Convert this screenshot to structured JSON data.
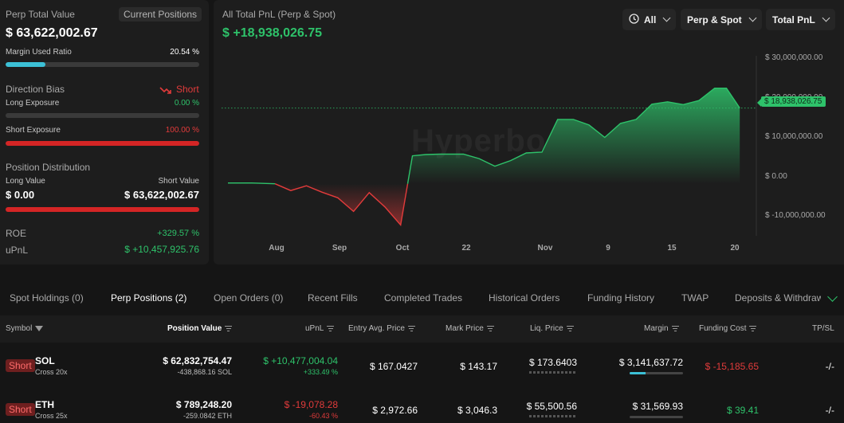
{
  "summary": {
    "perp_total_label": "Perp Total Value",
    "current_positions_button": "Current Positions",
    "perp_total_value": "$ 63,622,002.67",
    "margin_used_label": "Margin Used Ratio",
    "margin_used_value": "20.54 %",
    "margin_used_fraction": 0.2054,
    "direction_bias_label": "Direction Bias",
    "direction_bias_value": "Short",
    "long_exposure_label": "Long Exposure",
    "long_exposure_value": "0.00 %",
    "long_exposure_fraction": 0.0,
    "short_exposure_label": "Short Exposure",
    "short_exposure_value": "100.00 %",
    "short_exposure_fraction": 1.0,
    "position_distribution_label": "Position Distribution",
    "long_value_label": "Long Value",
    "short_value_label": "Short Value",
    "long_value": "$ 0.00",
    "short_value": "$ 63,622,002.67",
    "roe_label": "ROE",
    "roe_value": "+329.57 %",
    "upnl_label": "uPnL",
    "upnl_value": "$ +10,457,925.76"
  },
  "chart": {
    "title": "All Total PnL (Perp & Spot)",
    "total_value": "$ +18,938,026.75",
    "controls": {
      "range": "All",
      "scope": "Perp & Spot",
      "metric": "Total PnL"
    },
    "watermark": "Hyperbo",
    "current_tag": "$ 18,938,026.75",
    "colors": {
      "positive": "#2ec26a",
      "negative": "#e23b3b"
    }
  },
  "chart_data": {
    "type": "area",
    "y_tick_labels": [
      "$ 30,000,000.00",
      "$ 20,000,000.00",
      "$ 10,000,000.00",
      "$ 0.00",
      "$ -10,000,000.00"
    ],
    "y_ticks": [
      30000000,
      20000000,
      10000000,
      0,
      -10000000
    ],
    "ylim": [
      -13000000,
      32000000
    ],
    "x_tick_labels": [
      "Aug",
      "Sep",
      "Oct",
      "22",
      "Nov",
      "9",
      "15",
      "20"
    ],
    "x_ticks": [
      7,
      15,
      23,
      31,
      39,
      47,
      55,
      63
    ],
    "xlim": [
      0,
      66.8
    ],
    "current_value": 18938026.75,
    "x": [
      0,
      3,
      6,
      8,
      10,
      12,
      14,
      16,
      18,
      20,
      22,
      23.5,
      25.2,
      27,
      30,
      32,
      34,
      36,
      38,
      40,
      42,
      44,
      46,
      48,
      50,
      52,
      54,
      56,
      58,
      60,
      62,
      63.5,
      65.2
    ],
    "y": [
      200000,
      200000,
      0,
      -1700000,
      -500000,
      -2100000,
      -3500000,
      -6900000,
      -2200000,
      -5800000,
      -10300000,
      7000000,
      7300000,
      7400000,
      7400000,
      6300000,
      4400000,
      5800000,
      7700000,
      7900000,
      16100000,
      16100000,
      14700000,
      11600000,
      15100000,
      16100000,
      19900000,
      20500000,
      19800000,
      20800000,
      23900000,
      23900000,
      18938026
    ]
  },
  "tabs": [
    {
      "label": "Spot Holdings (0)"
    },
    {
      "label": "Perp Positions (2)"
    },
    {
      "label": "Open Orders (0)"
    },
    {
      "label": "Recent Fills"
    },
    {
      "label": "Completed Trades"
    },
    {
      "label": "Historical Orders"
    },
    {
      "label": "Funding History"
    },
    {
      "label": "TWAP"
    },
    {
      "label": "Deposits & Withdraw"
    }
  ],
  "table": {
    "headers": {
      "symbol": "Symbol",
      "position_value": "Position Value",
      "upnl": "uPnL",
      "entry": "Entry Avg. Price",
      "mark": "Mark Price",
      "liq": "Liq. Price",
      "margin": "Margin",
      "funding": "Funding Cost",
      "tpsl": "TP/SL"
    },
    "rows": [
      {
        "side": "Short",
        "symbol": "SOL",
        "leverage": "Cross 20x",
        "position_value": "$ 62,832,754.47",
        "position_size": "-438,868.16 SOL",
        "upnl": "$ +10,477,004.04",
        "upnl_pct": "+333.49 %",
        "entry": "$ 167.0427",
        "mark": "$ 143.17",
        "liq": "$ 173.6403",
        "margin": "$ 3,141,637.72",
        "margin_fraction": 0.3,
        "funding": "$ -15,185.65",
        "tpsl": "-/-"
      },
      {
        "side": "Short",
        "symbol": "ETH",
        "leverage": "Cross 25x",
        "position_value": "$ 789,248.20",
        "position_size": "-259.0842 ETH",
        "upnl": "$ -19,078.28",
        "upnl_pct": "-60.43 %",
        "entry": "$ 2,972.66",
        "mark": "$ 3,046.3",
        "liq": "$ 55,500.56",
        "margin": "$ 31,569.93",
        "margin_fraction": 0.0,
        "funding": "$ 39.41",
        "tpsl": "-/-"
      }
    ]
  }
}
